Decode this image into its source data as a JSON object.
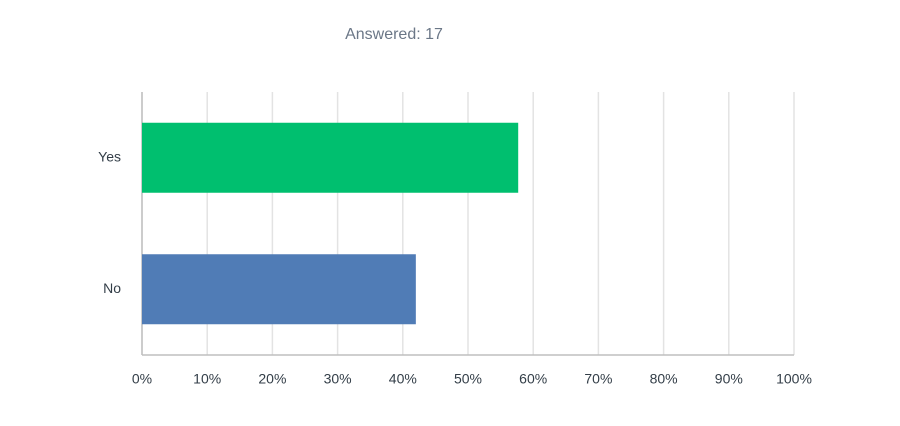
{
  "chart_data": {
    "type": "bar",
    "orientation": "horizontal",
    "title": "Answered: 17",
    "categories": [
      "Yes",
      "No"
    ],
    "series": [
      {
        "name": "Yes",
        "color": "#00bf6f",
        "values": [
          57.7,
          null
        ]
      },
      {
        "name": "No",
        "color": "#507cb6",
        "values": [
          null,
          42.0
        ]
      }
    ],
    "xlim": [
      0,
      100
    ],
    "xticks": [
      {
        "value": 0,
        "label": "0%"
      },
      {
        "value": 10,
        "label": "10%"
      },
      {
        "value": 20,
        "label": "20%"
      },
      {
        "value": 30,
        "label": "30%"
      },
      {
        "value": 40,
        "label": "40%"
      },
      {
        "value": 50,
        "label": "50%"
      },
      {
        "value": 60,
        "label": "60%"
      },
      {
        "value": 70,
        "label": "70%"
      },
      {
        "value": 80,
        "label": "80%"
      },
      {
        "value": 90,
        "label": "90%"
      },
      {
        "value": 100,
        "label": "100%"
      }
    ],
    "grid": true
  }
}
